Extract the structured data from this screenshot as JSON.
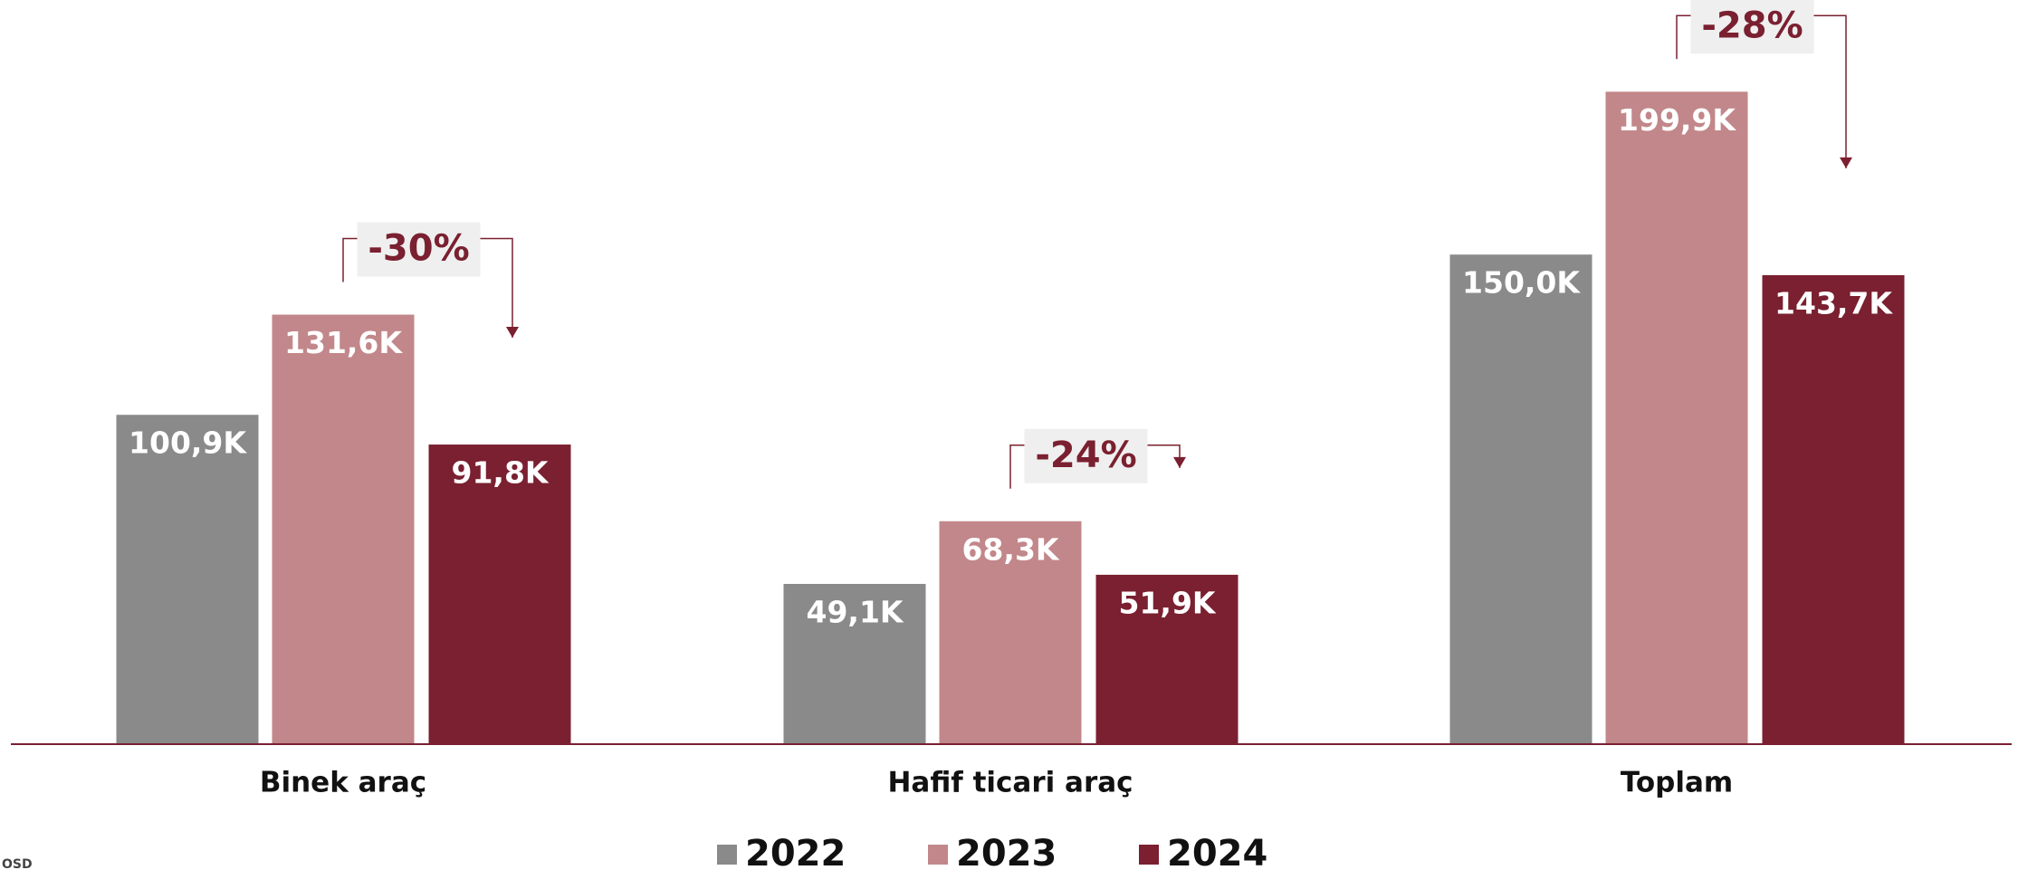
{
  "chart_data": {
    "type": "bar",
    "categories": [
      "Binek araç",
      "Hafif ticari araç",
      "Toplam"
    ],
    "series": [
      {
        "name": "2022",
        "color": "#8a8a8a",
        "values": [
          100.9,
          49.1,
          150.0
        ],
        "value_labels": [
          "100,9K",
          "49,1K",
          "150,0K"
        ]
      },
      {
        "name": "2023",
        "color": "#c2878a",
        "values": [
          131.6,
          68.3,
          199.9
        ],
        "value_labels": [
          "131,6K",
          "68,3K",
          "199,9K"
        ]
      },
      {
        "name": "2024",
        "color": "#7a2030",
        "values": [
          91.8,
          51.9,
          143.7
        ],
        "value_labels": [
          "91,8K",
          "51,9K",
          "143,7K"
        ]
      }
    ],
    "annotations": [
      "-30%",
      "-24%",
      "-28%"
    ],
    "ylim": [
      0,
      228
    ],
    "source": "OSD"
  }
}
